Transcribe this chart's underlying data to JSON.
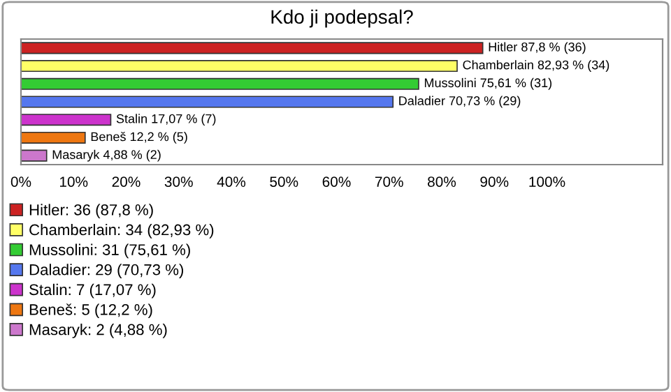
{
  "chart_data": {
    "type": "bar",
    "title": "Kdo ji podepsal?",
    "orientation": "horizontal",
    "categories": [
      null,
      null,
      null,
      null,
      null,
      null,
      null
    ],
    "series": [
      {
        "name": "Hitler: 36 (87,8 %)",
        "color": "#cc2222",
        "values": [
          87.8,
          null,
          null,
          null,
          null,
          null,
          null
        ],
        "value_labels": [
          "Hitler 87,8 % (36)",
          null,
          null,
          null,
          null,
          null,
          null
        ]
      },
      {
        "name": "Chamberlain: 34 (82,93 %)",
        "color": "#ffff66",
        "values": [
          null,
          82.93,
          null,
          null,
          null,
          null,
          null
        ],
        "value_labels": [
          null,
          "Chamberlain 82,93 % (34)",
          null,
          null,
          null,
          null,
          null
        ]
      },
      {
        "name": "Mussolini: 31 (75,61 %)",
        "color": "#33cc33",
        "values": [
          null,
          null,
          75.61,
          null,
          null,
          null,
          null
        ],
        "value_labels": [
          null,
          null,
          "Mussolini 75,61 % (31)",
          null,
          null,
          null,
          null
        ]
      },
      {
        "name": "Daladier: 29 (70,73 %)",
        "color": "#5577ee",
        "values": [
          null,
          null,
          null,
          70.73,
          null,
          null,
          null
        ],
        "value_labels": [
          null,
          null,
          null,
          "Daladier 70,73 % (29)",
          null,
          null,
          null
        ]
      },
      {
        "name": "Stalin: 7 (17,07 %)",
        "color": "#cc33cc",
        "values": [
          null,
          null,
          null,
          null,
          17.07,
          null,
          null
        ],
        "value_labels": [
          null,
          null,
          null,
          null,
          "Stalin 17,07 % (7)",
          null,
          null
        ]
      },
      {
        "name": "Beneš: 5 (12,2 %)",
        "color": "#ee7711",
        "values": [
          null,
          null,
          null,
          null,
          null,
          12.2,
          null
        ],
        "value_labels": [
          null,
          null,
          null,
          null,
          null,
          "Beneš 12,2 % (5)",
          null
        ]
      },
      {
        "name": "Masaryk: 2 (4,88 %)",
        "color": "#cc77cc",
        "values": [
          null,
          null,
          null,
          null,
          null,
          null,
          4.88
        ],
        "value_labels": [
          null,
          null,
          null,
          null,
          null,
          null,
          "Masaryk 4,88 % (2)"
        ]
      }
    ],
    "xlim": [
      0,
      122
    ],
    "xticks": [
      {
        "value": 0,
        "label": "0%"
      },
      {
        "value": 10,
        "label": "10%"
      },
      {
        "value": 20,
        "label": "20%"
      },
      {
        "value": 30,
        "label": "30%"
      },
      {
        "value": 40,
        "label": "40%"
      },
      {
        "value": 50,
        "label": "50%"
      },
      {
        "value": 60,
        "label": "60%"
      },
      {
        "value": 70,
        "label": "70%"
      },
      {
        "value": 80,
        "label": "80%"
      },
      {
        "value": 90,
        "label": "90%"
      },
      {
        "value": 100,
        "label": "100%"
      }
    ],
    "legend": "bottom"
  }
}
